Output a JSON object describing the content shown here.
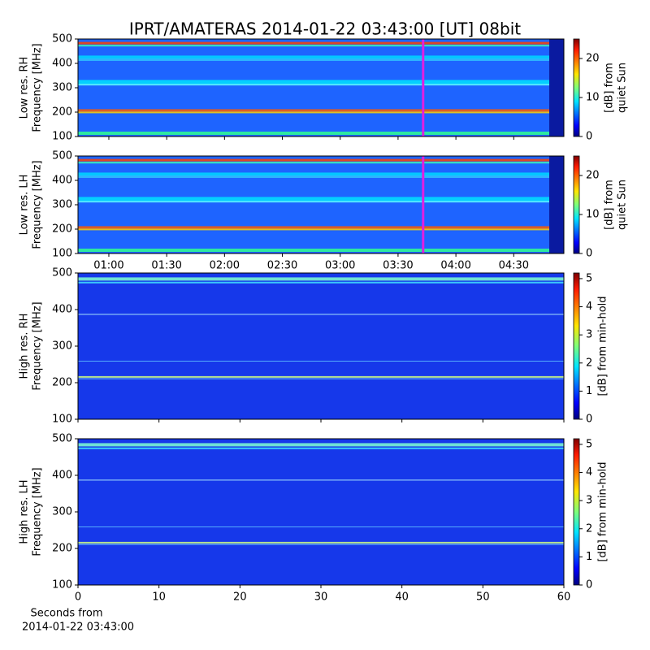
{
  "title": "IPRT/AMATERAS 2014-01-22 03:43:00 [UT]   08bit",
  "x_caption": [
    "Seconds from",
    "2014-01-22 03:43:00"
  ],
  "chart_data": [
    {
      "type": "heatmap",
      "ylabel": [
        "Low res. RH",
        "Frequency [MHz]"
      ],
      "ylim": [
        100,
        500
      ],
      "yticks": [
        100,
        200,
        300,
        400,
        500
      ],
      "xlim": [
        "00:44",
        "04:56"
      ],
      "xticks": [
        "01:00",
        "01:30",
        "02:00",
        "02:30",
        "03:00",
        "03:30",
        "04:00",
        "04:30"
      ],
      "xtick_labels": false,
      "marker_time": "03:43",
      "marker_color": "#e020e0",
      "colormap": "jet",
      "clim": [
        0,
        25
      ],
      "cticks": [
        0,
        10,
        20
      ],
      "clabel": [
        "[dB] from",
        "quiet Sun"
      ]
    },
    {
      "type": "heatmap",
      "ylabel": [
        "Low res. LH",
        "Frequency [MHz]"
      ],
      "ylim": [
        100,
        500
      ],
      "yticks": [
        100,
        200,
        300,
        400,
        500
      ],
      "xlim": [
        "00:44",
        "04:56"
      ],
      "xticks": [
        "01:00",
        "01:30",
        "02:00",
        "02:30",
        "03:00",
        "03:30",
        "04:00",
        "04:30"
      ],
      "xtick_labels": true,
      "marker_time": "03:43",
      "marker_color": "#e020e0",
      "colormap": "jet",
      "clim": [
        0,
        25
      ],
      "cticks": [
        0,
        10,
        20
      ],
      "clabel": [
        "[dB] from",
        "quiet Sun"
      ]
    },
    {
      "type": "heatmap",
      "ylabel": [
        "High res. RH",
        "Frequency [MHz]"
      ],
      "ylim": [
        100,
        500
      ],
      "yticks": [
        100,
        200,
        300,
        400,
        500
      ],
      "xlim": [
        0,
        60
      ],
      "xticks": [
        0,
        10,
        20,
        30,
        40,
        50,
        60
      ],
      "xtick_labels": false,
      "colormap": "jet",
      "clim": [
        0,
        5.2
      ],
      "cticks": [
        0,
        1,
        2,
        3,
        4,
        5
      ],
      "clabel": [
        "[dB] from min-hold"
      ]
    },
    {
      "type": "heatmap",
      "ylabel": [
        "High res. LH",
        "Frequency [MHz]"
      ],
      "ylim": [
        100,
        500
      ],
      "yticks": [
        100,
        200,
        300,
        400,
        500
      ],
      "xlim": [
        0,
        60
      ],
      "xticks": [
        0,
        10,
        20,
        30,
        40,
        50,
        60
      ],
      "xtick_labels": true,
      "colormap": "jet",
      "clim": [
        0,
        5.2
      ],
      "cticks": [
        0,
        1,
        2,
        3,
        4,
        5
      ],
      "clabel": [
        "[dB] from min-hold"
      ]
    }
  ]
}
